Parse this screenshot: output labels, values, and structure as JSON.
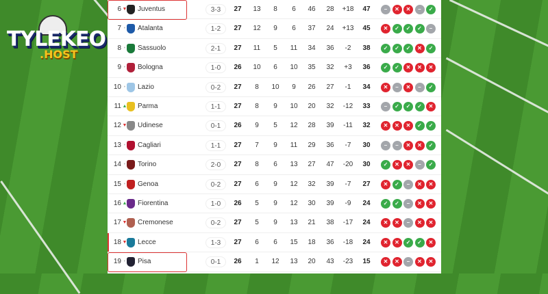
{
  "brand": {
    "name": "TYLEKEO",
    "suffix": ".HOST"
  },
  "colors": {
    "win": "#3aab4a",
    "loss": "#e0242f",
    "draw": "#a3a6ab",
    "highlight": "#dd3333"
  },
  "rows": [
    {
      "rank": "6",
      "trend": "down",
      "team": "Juventus",
      "last": "3-3",
      "p": "27",
      "w": "13",
      "d": "8",
      "l": "6",
      "gf": "46",
      "ga": "28",
      "gd": "+18",
      "pts": "47",
      "form": [
        "D",
        "L",
        "L",
        "D",
        "W"
      ],
      "mark": "box"
    },
    {
      "rank": "7",
      "trend": "same",
      "team": "Atalanta",
      "last": "1-2",
      "p": "27",
      "w": "12",
      "d": "9",
      "l": "6",
      "gf": "37",
      "ga": "24",
      "gd": "+13",
      "pts": "45",
      "form": [
        "L",
        "W",
        "W",
        "W",
        "D"
      ]
    },
    {
      "rank": "8",
      "trend": "same",
      "team": "Sassuolo",
      "last": "2-1",
      "p": "27",
      "w": "11",
      "d": "5",
      "l": "11",
      "gf": "34",
      "ga": "36",
      "gd": "-2",
      "pts": "38",
      "form": [
        "W",
        "W",
        "W",
        "L",
        "W"
      ]
    },
    {
      "rank": "9",
      "trend": "same",
      "team": "Bologna",
      "last": "1-0",
      "p": "26",
      "w": "10",
      "d": "6",
      "l": "10",
      "gf": "35",
      "ga": "32",
      "gd": "+3",
      "pts": "36",
      "form": [
        "W",
        "W",
        "L",
        "L",
        "L"
      ]
    },
    {
      "rank": "10",
      "trend": "same",
      "team": "Lazio",
      "last": "0-2",
      "p": "27",
      "w": "8",
      "d": "10",
      "l": "9",
      "gf": "26",
      "ga": "27",
      "gd": "-1",
      "pts": "34",
      "form": [
        "L",
        "D",
        "L",
        "D",
        "W"
      ]
    },
    {
      "rank": "11",
      "trend": "up",
      "team": "Parma",
      "last": "1-1",
      "p": "27",
      "w": "8",
      "d": "9",
      "l": "10",
      "gf": "20",
      "ga": "32",
      "gd": "-12",
      "pts": "33",
      "form": [
        "D",
        "W",
        "W",
        "W",
        "L"
      ]
    },
    {
      "rank": "12",
      "trend": "down",
      "team": "Udinese",
      "last": "0-1",
      "p": "26",
      "w": "9",
      "d": "5",
      "l": "12",
      "gf": "28",
      "ga": "39",
      "gd": "-11",
      "pts": "32",
      "form": [
        "L",
        "L",
        "L",
        "W",
        "W"
      ]
    },
    {
      "rank": "13",
      "trend": "same",
      "team": "Cagliari",
      "last": "1-1",
      "p": "27",
      "w": "7",
      "d": "9",
      "l": "11",
      "gf": "29",
      "ga": "36",
      "gd": "-7",
      "pts": "30",
      "form": [
        "D",
        "D",
        "L",
        "L",
        "W"
      ]
    },
    {
      "rank": "14",
      "trend": "same",
      "team": "Torino",
      "last": "2-0",
      "p": "27",
      "w": "8",
      "d": "6",
      "l": "13",
      "gf": "27",
      "ga": "47",
      "gd": "-20",
      "pts": "30",
      "form": [
        "W",
        "L",
        "L",
        "D",
        "W"
      ]
    },
    {
      "rank": "15",
      "trend": "same",
      "team": "Genoa",
      "last": "0-2",
      "p": "27",
      "w": "6",
      "d": "9",
      "l": "12",
      "gf": "32",
      "ga": "39",
      "gd": "-7",
      "pts": "27",
      "form": [
        "L",
        "W",
        "D",
        "L",
        "L"
      ]
    },
    {
      "rank": "16",
      "trend": "up",
      "team": "Fiorentina",
      "last": "1-0",
      "p": "26",
      "w": "5",
      "d": "9",
      "l": "12",
      "gf": "30",
      "ga": "39",
      "gd": "-9",
      "pts": "24",
      "form": [
        "W",
        "W",
        "D",
        "L",
        "L"
      ]
    },
    {
      "rank": "17",
      "trend": "down",
      "team": "Cremonese",
      "last": "0-2",
      "p": "27",
      "w": "5",
      "d": "9",
      "l": "13",
      "gf": "21",
      "ga": "38",
      "gd": "-17",
      "pts": "24",
      "form": [
        "L",
        "L",
        "D",
        "L",
        "L"
      ]
    },
    {
      "rank": "18",
      "trend": "down",
      "team": "Lecce",
      "last": "1-3",
      "p": "27",
      "w": "6",
      "d": "6",
      "l": "15",
      "gf": "18",
      "ga": "36",
      "gd": "-18",
      "pts": "24",
      "form": [
        "L",
        "L",
        "W",
        "W",
        "L"
      ],
      "mark": "bar"
    },
    {
      "rank": "19",
      "trend": "same",
      "team": "Pisa",
      "last": "0-1",
      "p": "26",
      "w": "1",
      "d": "12",
      "l": "13",
      "gf": "20",
      "ga": "43",
      "gd": "-23",
      "pts": "15",
      "form": [
        "L",
        "L",
        "D",
        "L",
        "L"
      ],
      "mark": "box"
    }
  ]
}
